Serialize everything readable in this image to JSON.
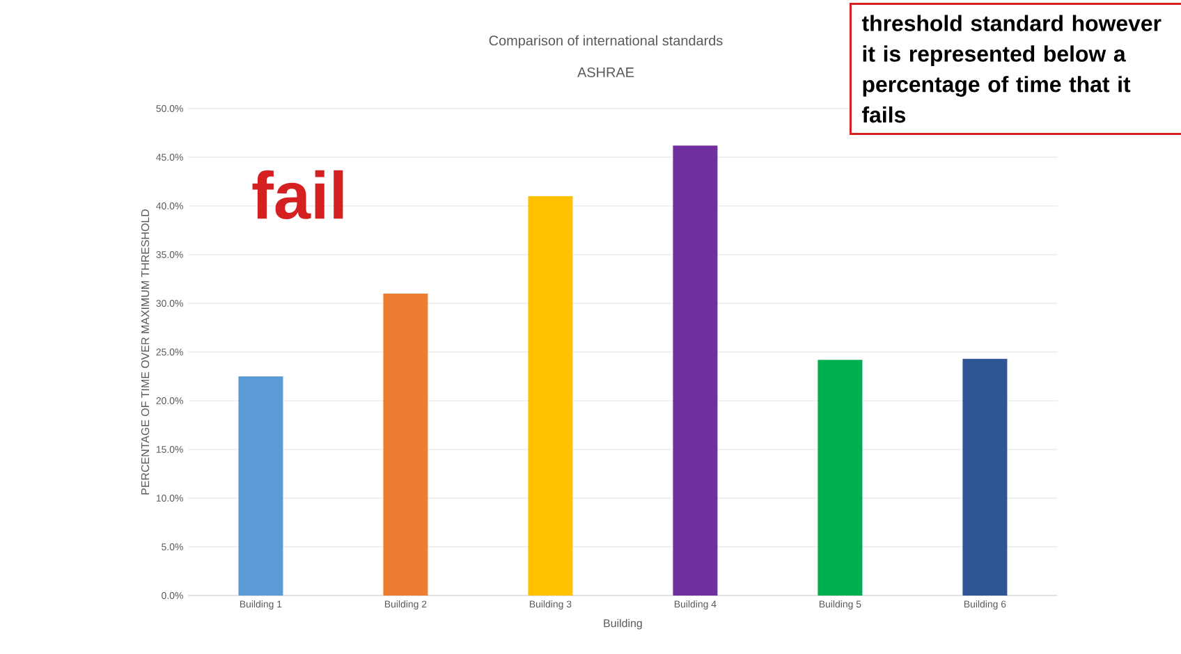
{
  "chart_data": {
    "type": "bar",
    "title": "Comparison of international standards",
    "subtitle": "ASHRAE",
    "xlabel": "Building",
    "ylabel": "PERCENTAGE OF TIME OVER MAXIMUM THRESHOLD",
    "categories": [
      "Building 1",
      "Building 2",
      "Building 3",
      "Building 4",
      "Building 5",
      "Building 6"
    ],
    "values": [
      22.5,
      31.0,
      41.0,
      46.2,
      24.2,
      24.3
    ],
    "colors": [
      "#5b9bd5",
      "#ed7d31",
      "#ffc000",
      "#7030a0",
      "#00b050",
      "#2f5597"
    ],
    "ylim": [
      0,
      50
    ],
    "yticks": [
      {
        "value": 0,
        "label": "0.0%"
      },
      {
        "value": 5,
        "label": "5.0%"
      },
      {
        "value": 10,
        "label": "10.0%"
      },
      {
        "value": 15,
        "label": "15.0%"
      },
      {
        "value": 20,
        "label": "20.0%"
      },
      {
        "value": 25,
        "label": "25.0%"
      },
      {
        "value": 30,
        "label": "30.0%"
      },
      {
        "value": 35,
        "label": "35.0%"
      },
      {
        "value": 40,
        "label": "40.0%"
      },
      {
        "value": 45,
        "label": "45.0%"
      },
      {
        "value": 50,
        "label": "50.0%"
      }
    ],
    "grid": "y",
    "annotations": [
      "fail",
      "threshold standard however it is represented below a percentage of time that it fails"
    ]
  }
}
